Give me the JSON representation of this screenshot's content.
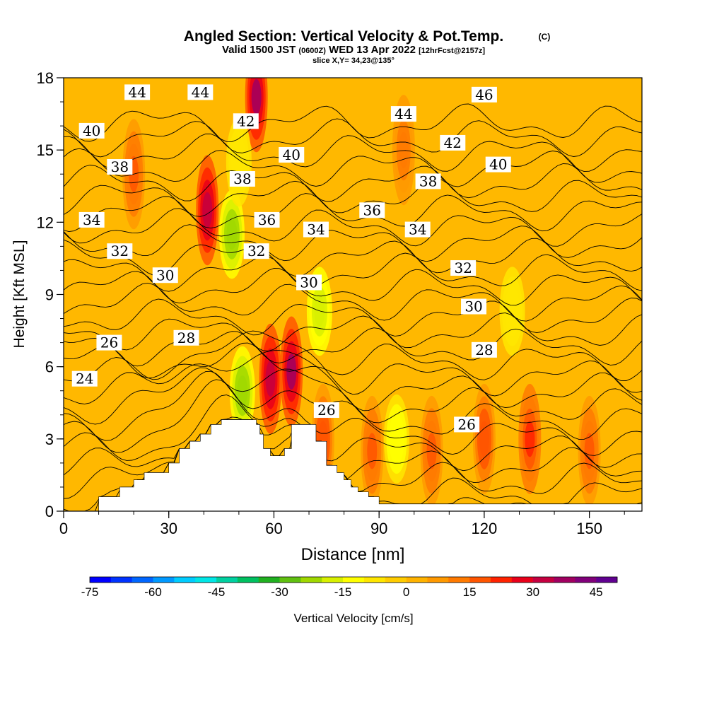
{
  "chart_data": {
    "type": "contour",
    "title": "Angled Section: Vertical Velocity & Pot.Temp.",
    "title_mark": "(C)",
    "subtitle_valid": "Valid 1500 JST",
    "subtitle_utc": "(0600Z)",
    "subtitle_date": "WED 13 Apr 2022",
    "subtitle_fcst": "[12hrFcst@2157z]",
    "slice_label": "slice X,Y= 34,23@135°",
    "xlabel": "Distance [nm]",
    "ylabel": "Height [Kft MSL]",
    "xlim": [
      0,
      165
    ],
    "ylim": [
      0,
      18
    ],
    "xticks": [
      "0",
      "30",
      "60",
      "90",
      "120",
      "150"
    ],
    "yticks": [
      "0",
      "3",
      "6",
      "9",
      "12",
      "15",
      "18"
    ],
    "colorbar": {
      "label": "Vertical Velocity [cm/s]",
      "range": [
        -75,
        50
      ],
      "ticks": [
        "-75",
        "-60",
        "-45",
        "-30",
        "-15",
        "0",
        "15",
        "30",
        "45"
      ],
      "colors": [
        "#0000ff",
        "#0033ff",
        "#0066ff",
        "#0099ff",
        "#00ccff",
        "#00e6e6",
        "#00d0a0",
        "#00c060",
        "#20b020",
        "#60c010",
        "#a0d800",
        "#d8f000",
        "#ffff00",
        "#ffe600",
        "#ffcc00",
        "#ffb300",
        "#ff9900",
        "#ff7a00",
        "#ff5500",
        "#ff2200",
        "#e8001a",
        "#c40040",
        "#a00060",
        "#80007a",
        "#600090"
      ]
    },
    "theta_contour_labels": [
      {
        "value": "44",
        "x": 21,
        "y": 17.4
      },
      {
        "value": "44",
        "x": 39,
        "y": 17.4
      },
      {
        "value": "46",
        "x": 120,
        "y": 17.3
      },
      {
        "value": "42",
        "x": 52,
        "y": 16.2
      },
      {
        "value": "44",
        "x": 97,
        "y": 16.5
      },
      {
        "value": "40",
        "x": 8,
        "y": 15.8
      },
      {
        "value": "42",
        "x": 111,
        "y": 15.3
      },
      {
        "value": "40",
        "x": 65,
        "y": 14.8
      },
      {
        "value": "40",
        "x": 124,
        "y": 14.4
      },
      {
        "value": "38",
        "x": 16,
        "y": 14.3
      },
      {
        "value": "38",
        "x": 51,
        "y": 13.8
      },
      {
        "value": "38",
        "x": 104,
        "y": 13.7
      },
      {
        "value": "36",
        "x": 88,
        "y": 12.5
      },
      {
        "value": "34",
        "x": 8,
        "y": 12.1
      },
      {
        "value": "36",
        "x": 58,
        "y": 12.1
      },
      {
        "value": "34",
        "x": 72,
        "y": 11.7
      },
      {
        "value": "34",
        "x": 101,
        "y": 11.7
      },
      {
        "value": "32",
        "x": 16,
        "y": 10.8
      },
      {
        "value": "32",
        "x": 55,
        "y": 10.8
      },
      {
        "value": "32",
        "x": 114,
        "y": 10.1
      },
      {
        "value": "30",
        "x": 29,
        "y": 9.8
      },
      {
        "value": "30",
        "x": 70,
        "y": 9.5
      },
      {
        "value": "30",
        "x": 117,
        "y": 8.5
      },
      {
        "value": "26",
        "x": 13,
        "y": 7.0
      },
      {
        "value": "28",
        "x": 35,
        "y": 7.2
      },
      {
        "value": "28",
        "x": 120,
        "y": 6.7
      },
      {
        "value": "24",
        "x": 6,
        "y": 5.5
      },
      {
        "value": "26",
        "x": 75,
        "y": 4.2
      },
      {
        "value": "26",
        "x": 115,
        "y": 3.6
      }
    ],
    "terrain_profile": [
      [
        0,
        0
      ],
      [
        10,
        0.6
      ],
      [
        13,
        0.6
      ],
      [
        16,
        1.0
      ],
      [
        20,
        1.3
      ],
      [
        23,
        1.6
      ],
      [
        27,
        1.6
      ],
      [
        30,
        2.0
      ],
      [
        33,
        2.6
      ],
      [
        36,
        2.9
      ],
      [
        39,
        3.2
      ],
      [
        42,
        3.6
      ],
      [
        45,
        3.8
      ],
      [
        52,
        3.8
      ],
      [
        55,
        3.6
      ],
      [
        56,
        3.2
      ],
      [
        57,
        2.6
      ],
      [
        59,
        2.3
      ],
      [
        62,
        2.3
      ],
      [
        63,
        2.6
      ],
      [
        65,
        3.6
      ],
      [
        71,
        3.6
      ],
      [
        72,
        2.9
      ],
      [
        75,
        1.9
      ],
      [
        78,
        1.6
      ],
      [
        80,
        1.3
      ],
      [
        82,
        1.0
      ],
      [
        84,
        0.8
      ],
      [
        87,
        0.6
      ],
      [
        90,
        0.3
      ],
      [
        165,
        0.3
      ]
    ],
    "updraft_cores": [
      {
        "x": 41,
        "y": 12.5,
        "w": 30
      },
      {
        "x": 55,
        "y": 17.2,
        "w": 35
      },
      {
        "x": 59,
        "y": 5.5,
        "w": 32
      },
      {
        "x": 65,
        "y": 5.8,
        "w": 35
      },
      {
        "x": 20,
        "y": 14,
        "w": 15
      },
      {
        "x": 74,
        "y": 3.0,
        "w": 18
      },
      {
        "x": 88,
        "y": 2.5,
        "w": 15
      },
      {
        "x": 105,
        "y": 2.5,
        "w": 16
      },
      {
        "x": 120,
        "y": 3.0,
        "w": 18
      },
      {
        "x": 133,
        "y": 3.0,
        "w": 22
      },
      {
        "x": 150,
        "y": 2.5,
        "w": 16
      },
      {
        "x": 97,
        "y": 15,
        "w": 12
      }
    ],
    "downdraft_cores": [
      {
        "x": 48,
        "y": 11.5,
        "w": -25
      },
      {
        "x": 51,
        "y": 5.0,
        "w": -25
      },
      {
        "x": 73,
        "y": 8.3,
        "w": -20
      },
      {
        "x": 50,
        "y": 14.5,
        "w": -10
      },
      {
        "x": 95,
        "y": 3.0,
        "w": -15
      },
      {
        "x": 128,
        "y": 8.3,
        "w": -10
      }
    ],
    "grid": false,
    "legend_position": "bottom"
  }
}
